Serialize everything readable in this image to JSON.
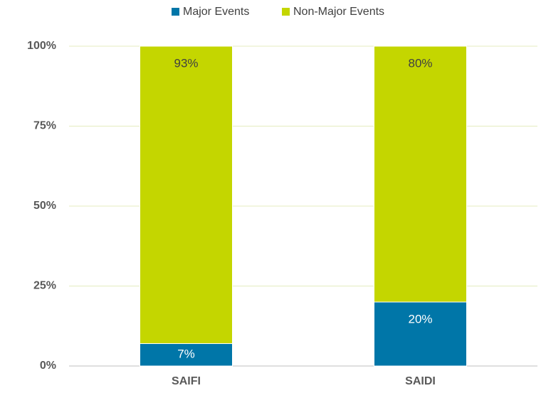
{
  "chart_data": {
    "type": "stacked_bar",
    "categories": [
      "SAIFI",
      "SAIDI"
    ],
    "series": [
      {
        "name": "Major Events",
        "color": "#0076a8",
        "values": [
          7,
          20
        ],
        "value_labels": [
          "7%",
          "20%"
        ]
      },
      {
        "name": "Non-Major Events",
        "color": "#c4d600",
        "values": [
          93,
          80
        ],
        "value_labels": [
          "93%",
          "80%"
        ]
      }
    ],
    "ylim": [
      0,
      100
    ],
    "yticks": [
      {
        "value": 0,
        "label": "0%"
      },
      {
        "value": 25,
        "label": "25%"
      },
      {
        "value": 50,
        "label": "50%"
      },
      {
        "value": 75,
        "label": "75%"
      },
      {
        "value": 100,
        "label": "100%"
      }
    ],
    "grid": true,
    "legend": "top"
  }
}
